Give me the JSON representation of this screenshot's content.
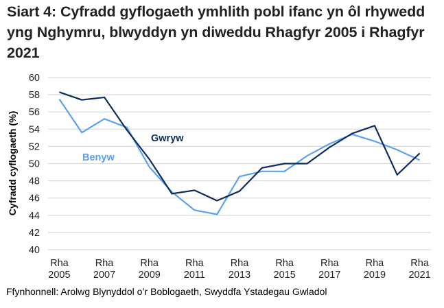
{
  "title": "Siart 4: Cyfradd gyflogaeth ymhlith pobl ifanc yn ôl rhywedd yng Nghymru, blwyddyn yn diweddu Rhagfyr 2005 i Rhagfyr 2021",
  "source": "Ffynhonnell: Arolwg Blynyddol o’r Boblogaeth, Swyddfa Ystadegau Gwladol",
  "colors": {
    "gwryw": "#0d2d5c",
    "benyw": "#5aa1f0",
    "grid": "#d9d9d9"
  },
  "chart_data": {
    "type": "line",
    "title": "Siart 4: Cyfradd gyflogaeth ymhlith pobl ifanc yn ôl rhywedd yng Nghymru, blwyddyn yn diweddu Rhagfyr 2005 i Rhagfyr 2021",
    "xlabel": "",
    "ylabel": "Cyfradd cyflogaeth (%)",
    "ylim": [
      40,
      60
    ],
    "yticks": [
      40,
      42,
      44,
      46,
      48,
      50,
      52,
      54,
      56,
      58,
      60
    ],
    "grid": true,
    "legend": "inline labels",
    "x": [
      "Rha 2005",
      "Rha 2006",
      "Rha 2007",
      "Rha 2008",
      "Rha 2009",
      "Rha 2010",
      "Rha 2011",
      "Rha 2012",
      "Rha 2013",
      "Rha 2014",
      "Rha 2015",
      "Rha 2016",
      "Rha 2017",
      "Rha 2018",
      "Rha 2019",
      "Rha 2020",
      "Rha 2021"
    ],
    "xtick_labels": [
      {
        "line1": "Rha",
        "line2": "2005"
      },
      {
        "line1": "Rha",
        "line2": "2007"
      },
      {
        "line1": "Rha",
        "line2": "2009"
      },
      {
        "line1": "Rha",
        "line2": "2011"
      },
      {
        "line1": "Rha",
        "line2": "2013"
      },
      {
        "line1": "Rha",
        "line2": "2015"
      },
      {
        "line1": "Rha",
        "line2": "2017"
      },
      {
        "line1": "Rha",
        "line2": "2019"
      },
      {
        "line1": "Rha",
        "line2": "2021"
      }
    ],
    "series": [
      {
        "name": "Gwryw",
        "values": [
          58.3,
          57.4,
          57.7,
          53.9,
          50.5,
          46.5,
          46.9,
          45.7,
          46.8,
          49.5,
          50.0,
          50.0,
          51.9,
          53.5,
          54.4,
          48.7,
          51.2
        ]
      },
      {
        "name": "Benyw",
        "values": [
          57.5,
          53.6,
          55.2,
          54.2,
          49.6,
          46.7,
          44.6,
          44.1,
          48.5,
          49.1,
          49.1,
          50.9,
          52.3,
          53.4,
          52.6,
          51.6,
          50.4
        ]
      }
    ],
    "annotations": [
      {
        "text": "Gwryw",
        "near": "Rha 2009"
      },
      {
        "text": "Benyw",
        "near": "Rha 2006"
      }
    ]
  }
}
